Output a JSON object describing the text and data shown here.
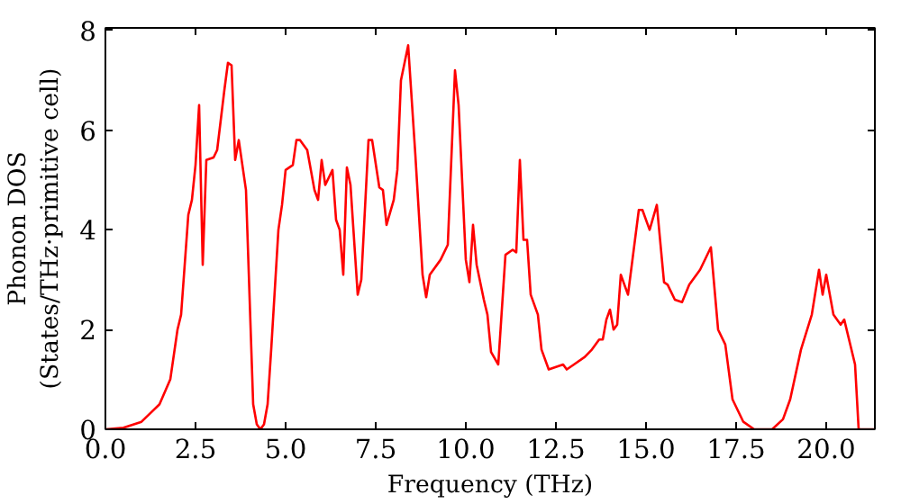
{
  "chart_data": {
    "type": "line",
    "xlabel": "Frequency (THz)",
    "ylabel": "Phonon DOS\n(States/THz·primitive cell)",
    "xlim": [
      0,
      21.35
    ],
    "ylim": [
      0,
      8.05
    ],
    "xticks": [
      {
        "value": 0,
        "label": "0.0"
      },
      {
        "value": 2.5,
        "label": "2.5"
      },
      {
        "value": 5,
        "label": "5.0"
      },
      {
        "value": 7.5,
        "label": "7.5"
      },
      {
        "value": 10,
        "label": "10.0"
      },
      {
        "value": 12.5,
        "label": "12.5"
      },
      {
        "value": 15,
        "label": "15.0"
      },
      {
        "value": 17.5,
        "label": "17.5"
      },
      {
        "value": 20,
        "label": "20.0"
      }
    ],
    "yticks": [
      0,
      2,
      4,
      6,
      8
    ],
    "grid": false,
    "series": [
      {
        "color": "#ff0000",
        "x": [
          0,
          0.5,
          1.0,
          1.5,
          1.8,
          2.0,
          2.1,
          2.3,
          2.4,
          2.5,
          2.6,
          2.7,
          2.8,
          3.0,
          3.1,
          3.3,
          3.4,
          3.5,
          3.6,
          3.7,
          3.9,
          4.1,
          4.2,
          4.3,
          4.4,
          4.5,
          4.6,
          4.8,
          4.9,
          5.0,
          5.2,
          5.3,
          5.4,
          5.6,
          5.8,
          5.9,
          6.0,
          6.1,
          6.3,
          6.4,
          6.5,
          6.6,
          6.7,
          6.8,
          7.0,
          7.1,
          7.3,
          7.4,
          7.6,
          7.7,
          7.8,
          8.0,
          8.1,
          8.2,
          8.4,
          8.6,
          8.8,
          8.9,
          9.0,
          9.3,
          9.5,
          9.7,
          9.8,
          10.0,
          10.1,
          10.2,
          10.3,
          10.5,
          10.6,
          10.7,
          10.9,
          11.1,
          11.3,
          11.4,
          11.5,
          11.6,
          11.7,
          11.8,
          12.0,
          12.1,
          12.3,
          12.5,
          12.7,
          12.8,
          13.0,
          13.3,
          13.5,
          13.7,
          13.8,
          13.9,
          14.0,
          14.1,
          14.2,
          14.3,
          14.5,
          14.8,
          14.9,
          15.1,
          15.3,
          15.5,
          15.6,
          15.8,
          16.0,
          16.2,
          16.5,
          16.8,
          17.0,
          17.2,
          17.4,
          17.7,
          18.0,
          18.5,
          18.8,
          19.0,
          19.3,
          19.6,
          19.8,
          19.9,
          20.0,
          20.2,
          20.4,
          20.5,
          20.8,
          20.9,
          21.35
        ],
        "values": [
          0,
          0.03,
          0.15,
          0.5,
          1.0,
          2.0,
          2.3,
          4.3,
          4.6,
          5.3,
          6.5,
          3.3,
          5.4,
          5.45,
          5.6,
          6.8,
          7.35,
          7.3,
          5.4,
          5.8,
          4.8,
          0.5,
          0.1,
          0.0,
          0.1,
          0.5,
          1.6,
          4.0,
          4.5,
          5.2,
          5.3,
          5.8,
          5.8,
          5.6,
          4.8,
          4.6,
          5.4,
          4.9,
          5.2,
          4.2,
          4.0,
          3.1,
          5.25,
          4.9,
          2.7,
          3.0,
          5.8,
          5.8,
          4.85,
          4.8,
          4.1,
          4.6,
          5.2,
          7.0,
          7.7,
          5.5,
          3.1,
          2.65,
          3.1,
          3.4,
          3.7,
          7.2,
          6.5,
          3.4,
          2.95,
          4.1,
          3.3,
          2.6,
          2.3,
          1.55,
          1.3,
          3.5,
          3.6,
          3.55,
          5.4,
          3.8,
          3.8,
          2.7,
          2.3,
          1.6,
          1.2,
          1.25,
          1.3,
          1.2,
          1.3,
          1.45,
          1.6,
          1.8,
          1.8,
          2.2,
          2.4,
          2.0,
          2.1,
          3.1,
          2.7,
          4.4,
          4.4,
          4.0,
          4.5,
          2.95,
          2.9,
          2.6,
          2.55,
          2.9,
          3.2,
          3.65,
          2.0,
          1.7,
          0.6,
          0.15,
          0.0,
          0.0,
          0.2,
          0.6,
          1.6,
          2.3,
          3.2,
          2.7,
          3.1,
          2.3,
          2.1,
          2.2,
          1.3,
          0.0,
          0.0
        ]
      }
    ]
  }
}
